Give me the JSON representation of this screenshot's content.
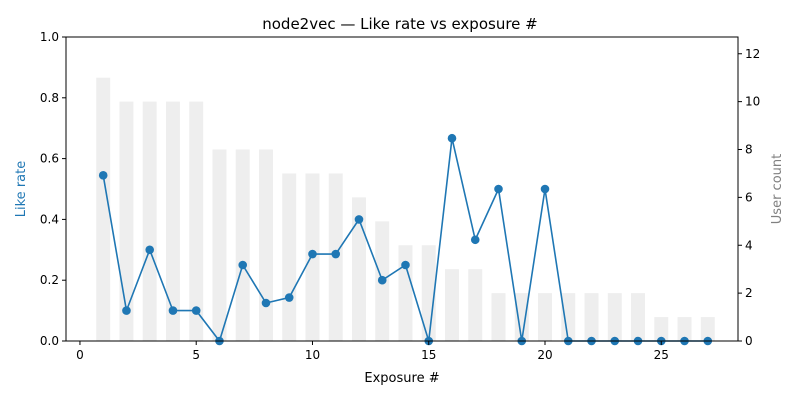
{
  "chart_data": {
    "type": "bar",
    "title": "node2vec — Like rate vs exposure #",
    "xlabel": "Exposure #",
    "ylabel": "Like rate",
    "y2label": "User count",
    "xlim": [
      -0.6,
      28.3
    ],
    "ylim": [
      0,
      1.0
    ],
    "y2lim": [
      0,
      12.7
    ],
    "x_ticks": [
      0,
      5,
      10,
      15,
      20,
      25
    ],
    "y_ticks": [
      0.0,
      0.2,
      0.4,
      0.6,
      0.8,
      1.0
    ],
    "y2_ticks": [
      0,
      2,
      4,
      6,
      8,
      10,
      12
    ],
    "grid": false,
    "colors": {
      "line": "#1f77b4",
      "bars": "#eeeeee",
      "y2label": "#808080",
      "axes": "#000000"
    },
    "series": [
      {
        "type": "bar",
        "axis": "right",
        "x": [
          1,
          2,
          3,
          4,
          5,
          6,
          7,
          8,
          9,
          10,
          11,
          12,
          13,
          14,
          15,
          16,
          17,
          18,
          19,
          20,
          21,
          22,
          23,
          24,
          25,
          26,
          27
        ],
        "values": [
          11,
          10,
          10,
          10,
          10,
          8,
          8,
          8,
          7,
          7,
          7,
          6,
          5,
          4,
          4,
          3,
          3,
          2,
          2,
          2,
          2,
          2,
          2,
          2,
          1,
          1,
          1
        ]
      },
      {
        "type": "line",
        "axis": "left",
        "x": [
          1,
          2,
          3,
          4,
          5,
          6,
          7,
          8,
          9,
          10,
          11,
          12,
          13,
          14,
          15,
          16,
          17,
          18,
          19,
          20,
          21,
          22,
          23,
          24,
          25,
          26,
          27
        ],
        "values": [
          0.545,
          0.1,
          0.3,
          0.1,
          0.1,
          0.0,
          0.25,
          0.125,
          0.143,
          0.286,
          0.286,
          0.4,
          0.2,
          0.25,
          0.0,
          0.667,
          0.333,
          0.5,
          0.0,
          0.5,
          0.0,
          0.0,
          0.0,
          0.0,
          0.0,
          0.0,
          0.0
        ]
      }
    ]
  }
}
